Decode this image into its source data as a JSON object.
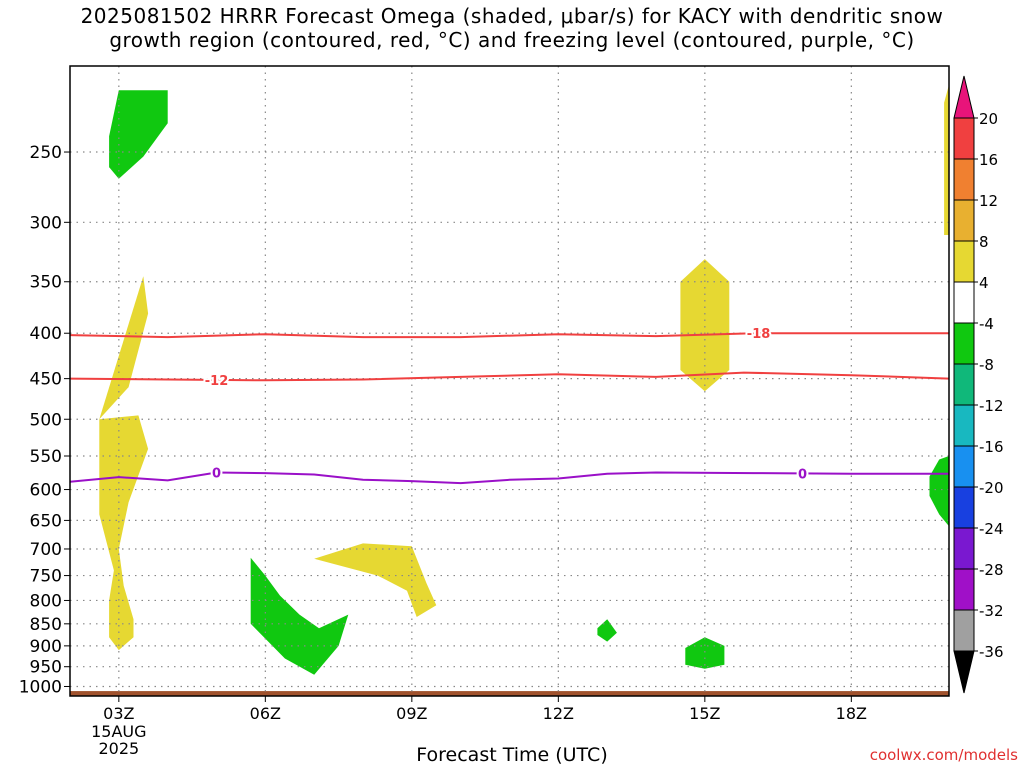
{
  "title_line1": "2025081502 HRRR Forecast Omega (shaded, μbar/s) for KACY with dendritic snow",
  "title_line2": "growth region (contoured, red, °C) and freezing level (contoured, purple, °C)",
  "xlabel": "Forecast Time (UTC)",
  "credit": "coolwx.com/models",
  "colors": {
    "snow_contour": "#f04040",
    "freezing_contour": "#9a10c8",
    "terrain": "#a0522d",
    "upward": "#10c810",
    "downward": "#e6d832"
  },
  "chart_data": {
    "type": "heatmap",
    "x_ticks": [
      "03Z",
      "06Z",
      "09Z",
      "12Z",
      "15Z",
      "18Z"
    ],
    "x_date_label": [
      "15AUG",
      "2025"
    ],
    "y_ticks": [
      250,
      300,
      350,
      400,
      450,
      500,
      550,
      600,
      650,
      700,
      750,
      800,
      850,
      900,
      950,
      1000
    ],
    "y_axis": "pressure (mb), reversed, log scale",
    "xlim": [
      "02Z",
      "20Z"
    ],
    "ylim": [
      200,
      1025
    ],
    "grid": true,
    "colorbar": {
      "labels": [
        "20",
        "16",
        "12",
        "8",
        "4",
        "-4",
        "-8",
        "-12",
        "-16",
        "-20",
        "-24",
        "-28",
        "-32",
        "-36"
      ],
      "colors": [
        "#e8147a",
        "#f04040",
        "#f08030",
        "#e8b030",
        "#e6d832",
        "#ffffff",
        "#10c810",
        "#10b87a",
        "#18b8c0",
        "#1890f0",
        "#1840e0",
        "#7a18d0",
        "#a010c8",
        "#a0a0a0",
        "#000000"
      ]
    },
    "contours": [
      {
        "label": "-18",
        "color": "#f04040",
        "points": [
          [
            2,
            402
          ],
          [
            4,
            404
          ],
          [
            6,
            401
          ],
          [
            8,
            404
          ],
          [
            10,
            404
          ],
          [
            12,
            401
          ],
          [
            14,
            403
          ],
          [
            16,
            400
          ],
          [
            18,
            400
          ],
          [
            20,
            400
          ]
        ],
        "label_x": 16.1
      },
      {
        "label": "-12",
        "color": "#f04040",
        "points": [
          [
            2,
            450
          ],
          [
            4,
            451
          ],
          [
            6,
            452
          ],
          [
            8,
            451
          ],
          [
            10,
            448
          ],
          [
            12,
            445
          ],
          [
            14,
            448
          ],
          [
            15.8,
            443
          ],
          [
            18,
            446
          ],
          [
            20,
            450
          ]
        ],
        "label_x": 5.0
      },
      {
        "label": "0",
        "color": "#9a10c8",
        "points": [
          [
            2,
            588
          ],
          [
            3,
            581
          ],
          [
            4,
            586
          ],
          [
            5,
            574
          ],
          [
            6,
            575
          ],
          [
            7,
            577
          ],
          [
            8,
            585
          ],
          [
            9,
            587
          ],
          [
            10,
            590
          ],
          [
            11,
            585
          ],
          [
            12,
            583
          ],
          [
            13,
            576
          ],
          [
            14,
            574
          ],
          [
            16,
            575
          ],
          [
            18,
            576
          ],
          [
            20,
            576
          ]
        ],
        "label_x": 5.0,
        "label_x2": 17.0
      }
    ],
    "shaded_regions": [
      {
        "color": "green",
        "points": [
          [
            3,
            213
          ],
          [
            4,
            213
          ],
          [
            4,
            232
          ],
          [
            3.5,
            253
          ],
          [
            3,
            268
          ],
          [
            2.8,
            260
          ],
          [
            2.8,
            240
          ]
        ]
      },
      {
        "color": "yellow",
        "points": [
          [
            3.5,
            345
          ],
          [
            3.6,
            380
          ],
          [
            3.2,
            460
          ],
          [
            2.6,
            500
          ]
        ]
      },
      {
        "color": "green",
        "points": [
          [
            5.7,
            716
          ],
          [
            6,
            750
          ],
          [
            6.3,
            790
          ],
          [
            6.7,
            830
          ],
          [
            7.1,
            860
          ],
          [
            7.7,
            830
          ],
          [
            7.5,
            900
          ],
          [
            7.0,
            970
          ],
          [
            6.4,
            930
          ],
          [
            5.7,
            850
          ],
          [
            5.7,
            780
          ]
        ]
      },
      {
        "color": "yellow",
        "points": [
          [
            7,
            718
          ],
          [
            8,
            690
          ],
          [
            9,
            695
          ],
          [
            9.3,
            765
          ],
          [
            9.5,
            810
          ],
          [
            9.1,
            835
          ],
          [
            8.9,
            780
          ],
          [
            8.3,
            750
          ],
          [
            7.5,
            730
          ]
        ]
      },
      {
        "color": "yellow",
        "points": [
          [
            2.6,
            500
          ],
          [
            3.4,
            495
          ],
          [
            3.6,
            540
          ],
          [
            3.2,
            620
          ],
          [
            3.0,
            700
          ],
          [
            3.1,
            770
          ],
          [
            3.3,
            840
          ],
          [
            3.3,
            880
          ],
          [
            3.0,
            910
          ],
          [
            2.8,
            880
          ],
          [
            2.8,
            800
          ],
          [
            2.9,
            740
          ],
          [
            2.6,
            640
          ],
          [
            2.6,
            560
          ]
        ]
      },
      {
        "color": "green",
        "points": [
          [
            12.8,
            860
          ],
          [
            13,
            840
          ],
          [
            13.2,
            870
          ],
          [
            13,
            890
          ],
          [
            12.8,
            875
          ]
        ]
      },
      {
        "color": "green",
        "points": [
          [
            14.6,
            905
          ],
          [
            15,
            880
          ],
          [
            15.4,
            900
          ],
          [
            15.4,
            945
          ],
          [
            15,
            955
          ],
          [
            14.6,
            945
          ]
        ]
      },
      {
        "color": "yellow",
        "points": [
          [
            14.5,
            350
          ],
          [
            15,
            330
          ],
          [
            15.5,
            350
          ],
          [
            15.5,
            440
          ],
          [
            15,
            465
          ],
          [
            14.5,
            440
          ],
          [
            14.5,
            400
          ]
        ]
      },
      {
        "color": "yellow",
        "points": [
          [
            19.9,
            220
          ],
          [
            20,
            210
          ],
          [
            20,
            310
          ],
          [
            19.9,
            310
          ]
        ]
      },
      {
        "color": "green",
        "points": [
          [
            19.6,
            580
          ],
          [
            19.8,
            555
          ],
          [
            20,
            550
          ],
          [
            20,
            660
          ],
          [
            19.8,
            640
          ],
          [
            19.6,
            610
          ]
        ]
      }
    ]
  }
}
